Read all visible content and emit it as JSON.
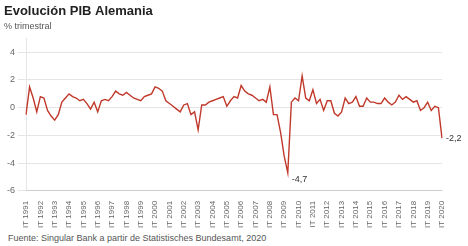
{
  "chart_data": {
    "type": "line",
    "title": "Evolución PIB Alemania",
    "subtitle": "% trimestral",
    "footnote": "Fuente: Singular Bank a partir de Statistisches Bundesamt, 2020",
    "categories": [
      "IT 1991",
      null,
      null,
      null,
      "IT 1992",
      null,
      null,
      null,
      "IT 1993",
      null,
      null,
      null,
      "IT 1994",
      null,
      null,
      null,
      "IT 1995",
      null,
      null,
      null,
      "IT 1996",
      null,
      null,
      null,
      "IT 1997",
      null,
      null,
      null,
      "IT 1998",
      null,
      null,
      null,
      "IT 1999",
      null,
      null,
      null,
      "IT 2000",
      null,
      null,
      null,
      "IT 2001",
      null,
      null,
      null,
      "IT 2002",
      null,
      null,
      null,
      "IT 2003",
      null,
      null,
      null,
      "IT 2004",
      null,
      null,
      null,
      "IT 2005",
      null,
      null,
      null,
      "IT 2006",
      null,
      null,
      null,
      "IT 2007",
      null,
      null,
      null,
      "IT 2008",
      null,
      null,
      null,
      "IT 2009",
      null,
      null,
      null,
      "IT 2010",
      null,
      null,
      null,
      "IT 2011",
      null,
      null,
      null,
      "IT 2012",
      null,
      null,
      null,
      "IT 2013",
      null,
      null,
      null,
      "IT 2014",
      null,
      null,
      null,
      "IT 2015",
      null,
      null,
      null,
      "IT 2016",
      null,
      null,
      null,
      "IT 2017",
      null,
      null,
      null,
      "IT 2018",
      null,
      null,
      null,
      "IT 2019",
      null,
      null,
      null,
      "IT 2020"
    ],
    "values": [
      -0.5,
      1.5,
      0.7,
      -0.3,
      0.8,
      0.7,
      -0.2,
      -0.6,
      -0.9,
      -0.5,
      0.4,
      0.7,
      1.0,
      0.8,
      0.7,
      0.5,
      0.6,
      0.3,
      -0.1,
      0.4,
      -0.3,
      0.5,
      0.6,
      0.5,
      0.8,
      1.2,
      1.0,
      0.9,
      1.1,
      0.9,
      0.7,
      0.6,
      0.5,
      0.8,
      0.9,
      1.0,
      1.5,
      1.4,
      1.2,
      0.5,
      0.3,
      0.1,
      -0.1,
      -0.3,
      0.2,
      0.3,
      -0.5,
      -0.3,
      -1.6,
      0.2,
      0.2,
      0.4,
      0.5,
      0.6,
      0.7,
      0.8,
      0.1,
      0.5,
      0.8,
      0.7,
      1.6,
      1.2,
      1.0,
      0.9,
      0.7,
      0.5,
      0.6,
      0.4,
      1.5,
      -0.5,
      -0.5,
      -1.8,
      -3.5,
      -4.7,
      0.4,
      0.7,
      0.5,
      2.3,
      0.7,
      0.5,
      1.3,
      0.3,
      0.6,
      -0.2,
      0.5,
      0.5,
      -0.4,
      -0.6,
      -0.3,
      0.7,
      0.3,
      0.4,
      0.8,
      0.1,
      0.1,
      0.7,
      0.4,
      0.4,
      0.3,
      0.3,
      0.7,
      0.4,
      0.2,
      0.4,
      0.9,
      0.6,
      0.8,
      0.6,
      0.4,
      0.5,
      -0.2,
      0.0,
      0.4,
      -0.2,
      0.1,
      0.0,
      -2.2
    ],
    "color": "#c0392b",
    "ylim": [
      -6,
      5
    ],
    "yticks": [
      -6,
      -4,
      -2,
      0,
      2,
      4
    ],
    "grid": true,
    "annotations": [
      {
        "text": "-4,7",
        "value": -4.7
      },
      {
        "text": "-2,2",
        "value": -2.2
      }
    ]
  }
}
